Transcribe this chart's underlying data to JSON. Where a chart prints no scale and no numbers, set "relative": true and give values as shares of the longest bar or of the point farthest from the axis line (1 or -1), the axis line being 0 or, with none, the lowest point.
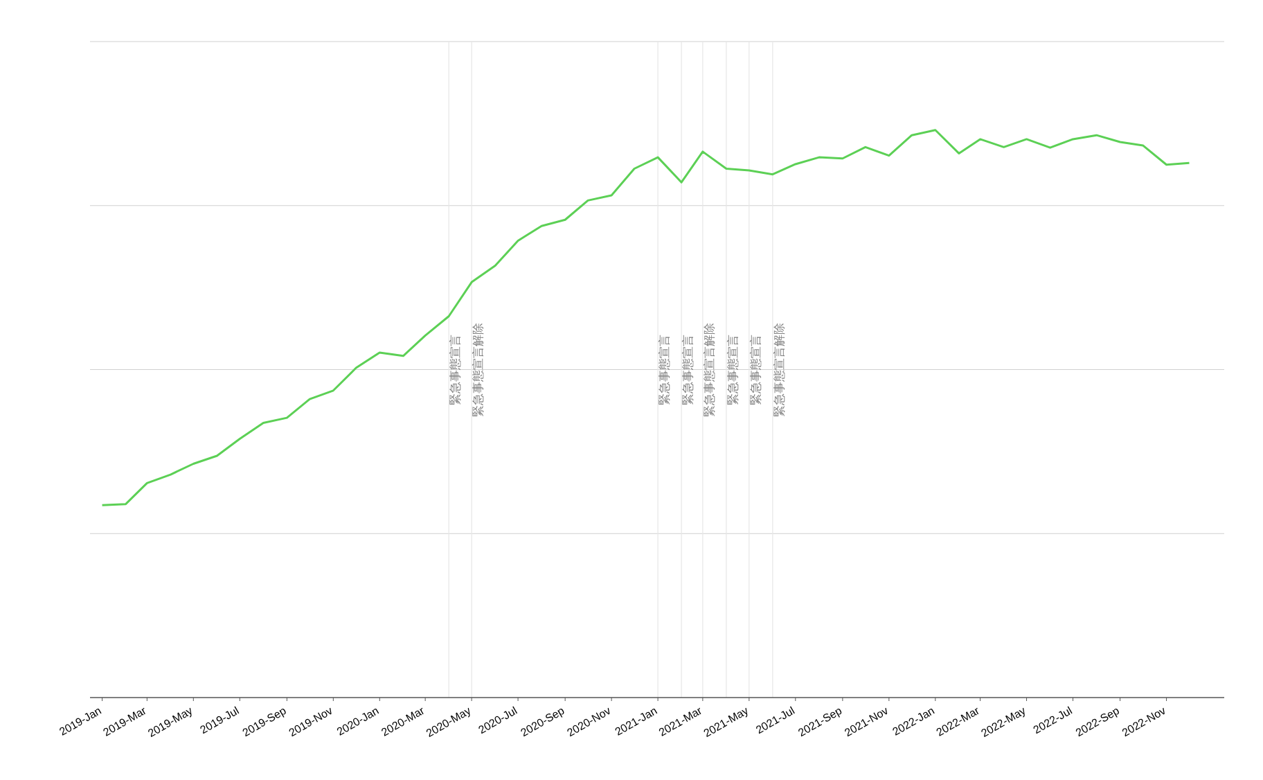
{
  "chart_data": {
    "type": "line",
    "relative": true,
    "grid": "y",
    "marker": "none",
    "line_style": "solid",
    "x": [
      "2019-01",
      "2019-02",
      "2019-03",
      "2019-04",
      "2019-05",
      "2019-06",
      "2019-07",
      "2019-08",
      "2019-09",
      "2019-10",
      "2019-11",
      "2019-12",
      "2020-01",
      "2020-02",
      "2020-03",
      "2020-04",
      "2020-05",
      "2020-06",
      "2020-07",
      "2020-08",
      "2020-09",
      "2020-10",
      "2020-11",
      "2020-12",
      "2021-01",
      "2021-02",
      "2021-03",
      "2021-04",
      "2021-05",
      "2021-06",
      "2021-07",
      "2021-08",
      "2021-09",
      "2021-10",
      "2021-11",
      "2021-12",
      "2022-01",
      "2022-02",
      "2022-03",
      "2022-04",
      "2022-05",
      "2022-06",
      "2022-07",
      "2022-08",
      "2022-09",
      "2022-10",
      "2022-11",
      "2022-12"
    ],
    "series": [
      {
        "color": "#5cd055",
        "values": [
          0.339,
          0.341,
          0.378,
          0.393,
          0.412,
          0.426,
          0.456,
          0.484,
          0.493,
          0.526,
          0.541,
          0.581,
          0.608,
          0.602,
          0.638,
          0.672,
          0.732,
          0.761,
          0.805,
          0.831,
          0.842,
          0.876,
          0.885,
          0.932,
          0.952,
          0.908,
          0.962,
          0.932,
          0.929,
          0.922,
          0.94,
          0.952,
          0.95,
          0.97,
          0.955,
          0.991,
          1,
          0.959,
          0.984,
          0.97,
          0.984,
          0.969,
          0.984,
          0.991,
          0.979,
          0.973,
          0.939,
          0.942
        ]
      }
    ],
    "xlim": [
      "2018-12-16",
      "2023-01-16"
    ],
    "xticks": [
      {
        "value": "2019-01",
        "label": "2019-Jan"
      },
      {
        "value": "2019-03",
        "label": "2019-Mar"
      },
      {
        "value": "2019-05",
        "label": "2019-May"
      },
      {
        "value": "2019-07",
        "label": "2019-Jul"
      },
      {
        "value": "2019-09",
        "label": "2019-Sep"
      },
      {
        "value": "2019-11",
        "label": "2019-Nov"
      },
      {
        "value": "2020-01",
        "label": "2020-Jan"
      },
      {
        "value": "2020-03",
        "label": "2020-Mar"
      },
      {
        "value": "2020-05",
        "label": "2020-May"
      },
      {
        "value": "2020-07",
        "label": "2020-Jul"
      },
      {
        "value": "2020-09",
        "label": "2020-Sep"
      },
      {
        "value": "2020-11",
        "label": "2020-Nov"
      },
      {
        "value": "2021-01",
        "label": "2021-Jan"
      },
      {
        "value": "2021-03",
        "label": "2021-Mar"
      },
      {
        "value": "2021-05",
        "label": "2021-May"
      },
      {
        "value": "2021-07",
        "label": "2021-Jul"
      },
      {
        "value": "2021-09",
        "label": "2021-Sep"
      },
      {
        "value": "2021-11",
        "label": "2021-Nov"
      },
      {
        "value": "2022-01",
        "label": "2022-Jan"
      },
      {
        "value": "2022-03",
        "label": "2022-Mar"
      },
      {
        "value": "2022-05",
        "label": "2022-May"
      },
      {
        "value": "2022-07",
        "label": "2022-Jul"
      },
      {
        "value": "2022-09",
        "label": "2022-Sep"
      },
      {
        "value": "2022-11",
        "label": "2022-Nov"
      }
    ],
    "ref_lines": [
      {
        "axis": "x",
        "value": "2020-04",
        "label": "緊急事態宣言",
        "color": "#e6e6e6"
      },
      {
        "axis": "x",
        "value": "2020-05",
        "label": "緊急事態宣言解除",
        "color": "#e6e6e6"
      },
      {
        "axis": "x",
        "value": "2021-01",
        "label": "緊急事態宣言",
        "color": "#e6e6e6"
      },
      {
        "axis": "x",
        "value": "2021-02",
        "label": "緊急事態宣言",
        "color": "#e6e6e6"
      },
      {
        "axis": "x",
        "value": "2021-03",
        "label": "緊急事態宣言解除",
        "color": "#e6e6e6"
      },
      {
        "axis": "x",
        "value": "2021-04",
        "label": "緊急事態宣言",
        "color": "#e6e6e6"
      },
      {
        "axis": "x",
        "value": "2021-05",
        "label": "緊急事態宣言",
        "color": "#e6e6e6"
      },
      {
        "axis": "x",
        "value": "2021-06",
        "label": "緊急事態宣言解除",
        "color": "#e6e6e6"
      }
    ]
  }
}
